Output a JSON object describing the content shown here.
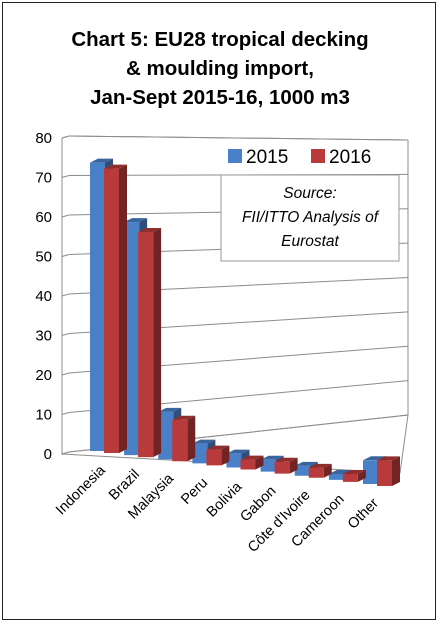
{
  "title_lines": [
    "Chart 5: EU28 tropical decking",
    "& moulding import,",
    "Jan-Sept 2015-16, 1000 m3"
  ],
  "source_lines": [
    "Source:",
    "FII/ITTO Analysis of",
    "Eurostat"
  ],
  "colors": {
    "s2015": "#4a80c8",
    "s2016": "#b83a3a"
  },
  "chart_data": {
    "type": "bar",
    "title": "Chart 5: EU28 tropical decking & moulding import, Jan-Sept 2015-16, 1000 m3",
    "categories": [
      "Indonesia",
      "Brazil",
      "Malaysia",
      "Peru",
      "Bolivia",
      "Gabon",
      "Côte d'Ivoire",
      "Cameroon",
      "Other"
    ],
    "series": [
      {
        "name": "2015",
        "values": [
          73,
          59,
          12,
          5,
          3.5,
          3,
          2.5,
          1.5,
          6
        ]
      },
      {
        "name": "2016",
        "values": [
          72,
          57,
          10.5,
          4,
          2.5,
          3,
          2.5,
          2,
          6.5
        ]
      }
    ],
    "ylim": [
      0,
      80
    ],
    "yticks": [
      "0",
      "10",
      "20",
      "30",
      "40",
      "50",
      "60",
      "70",
      "80"
    ],
    "grid": true,
    "legend": "top-right"
  }
}
